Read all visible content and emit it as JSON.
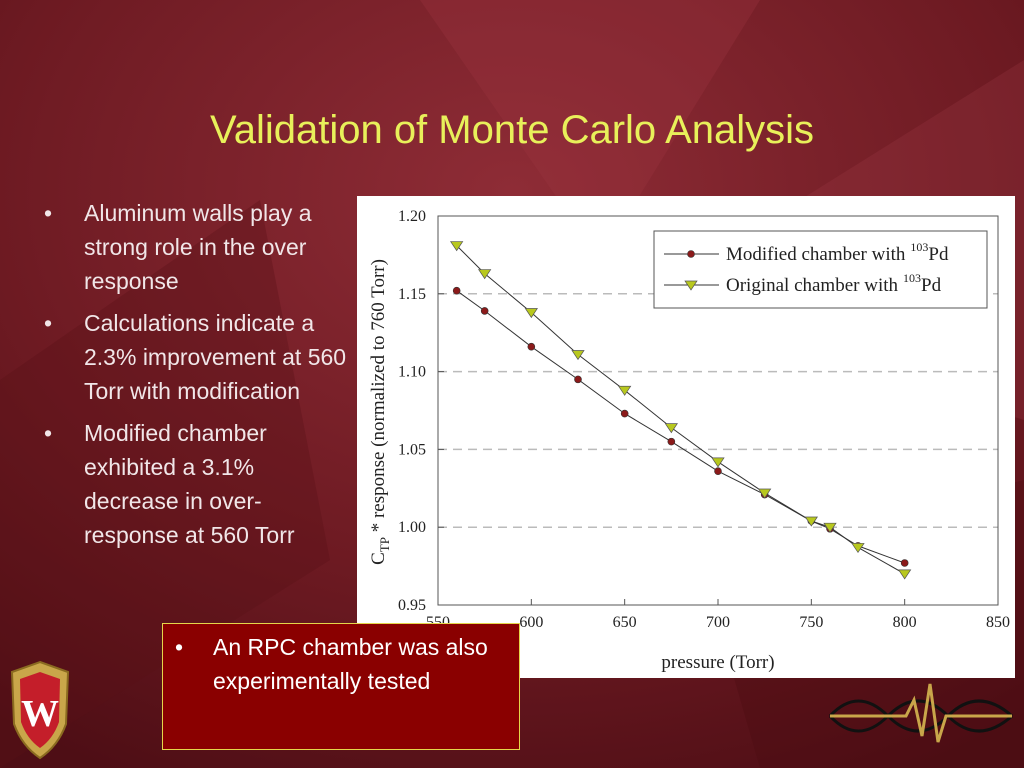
{
  "slide": {
    "title": "Validation of Monte Carlo Analysis",
    "bullets": [
      "Aluminum walls play a strong role in the over response",
      "Calculations indicate a 2.3% improvement at 560 Torr with modification",
      "Modified chamber exhibited a 3.1% decrease in over-response at 560 Torr"
    ],
    "note": "An RPC chamber was also experimentally tested",
    "crest_letter": "W",
    "colors": {
      "background": "#7a1f28",
      "title": "#e8f05a",
      "note_box": "#8a0000",
      "note_border": "#e5d64a"
    }
  },
  "chart_data": {
    "type": "line",
    "xlabel": "pressure (Torr)",
    "ylabel": {
      "prefix": "C",
      "sub": "TP",
      "suffix": " * response (normalized to 760 Torr)"
    },
    "xlim": [
      550,
      850
    ],
    "ylim": [
      0.95,
      1.2
    ],
    "x_ticks": [
      "550",
      "600",
      "650",
      "700",
      "750",
      "800",
      "850"
    ],
    "y_ticks": [
      "1.20",
      "1.15",
      "1.10",
      "1.05",
      "1.00",
      "0.95"
    ],
    "grid": "horizontal dashed",
    "legend_position": "top-right",
    "series": [
      {
        "name": "Modified chamber with",
        "name_sup": "103",
        "name_tail": "Pd",
        "marker": "circle",
        "color": "#8b1a1a",
        "x": [
          560,
          575,
          600,
          625,
          650,
          675,
          700,
          725,
          750,
          760,
          775,
          800
        ],
        "y": [
          1.152,
          1.139,
          1.116,
          1.095,
          1.073,
          1.055,
          1.036,
          1.021,
          1.004,
          0.999,
          0.988,
          0.977
        ]
      },
      {
        "name": "Original chamber with",
        "name_sup": "103",
        "name_tail": "Pd",
        "marker": "triangle-down",
        "color": "#b8c81e",
        "x": [
          560,
          575,
          600,
          625,
          650,
          675,
          700,
          725,
          750,
          760,
          775,
          800
        ],
        "y": [
          1.181,
          1.163,
          1.138,
          1.111,
          1.088,
          1.064,
          1.042,
          1.022,
          1.004,
          1.0,
          0.987,
          0.97
        ]
      }
    ]
  }
}
